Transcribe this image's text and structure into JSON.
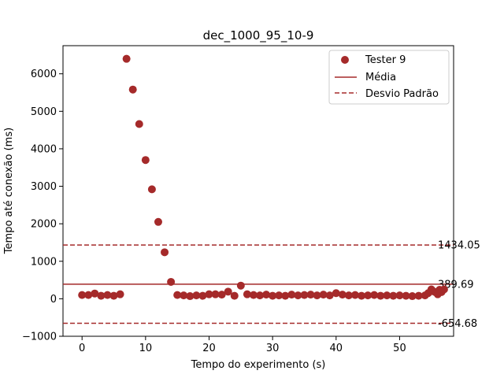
{
  "chart_data": {
    "type": "scatter",
    "title": "dec_1000_95_10-9",
    "xlabel": "Tempo do experimento (s)",
    "ylabel": "Tempo até conexão (ms)",
    "xlim": [
      -3,
      58.5
    ],
    "ylim": [
      -1000,
      6750
    ],
    "xticks": [
      0,
      10,
      20,
      30,
      40,
      50
    ],
    "yticks": [
      -1000,
      0,
      1000,
      2000,
      3000,
      4000,
      5000,
      6000
    ],
    "grid": false,
    "legend_position": "top-right",
    "legend": [
      {
        "label": "Tester 9",
        "kind": "marker"
      },
      {
        "label": "Média",
        "kind": "solid-line"
      },
      {
        "label": "Desvio Padrão",
        "kind": "dashed-line"
      }
    ],
    "series": [
      {
        "name": "Tester 9",
        "color": "#a52a2a",
        "x": [
          0,
          1,
          2,
          3,
          4,
          5,
          6,
          7,
          8,
          9,
          10,
          11,
          12,
          13,
          14,
          15,
          16,
          17,
          18,
          19,
          20,
          21,
          22,
          23,
          24,
          25,
          26,
          27,
          28,
          29,
          30,
          31,
          32,
          33,
          34,
          35,
          36,
          37,
          38,
          39,
          40,
          41,
          42,
          43,
          44,
          45,
          46,
          47,
          48,
          49,
          50,
          51,
          52,
          53,
          54,
          54.5,
          55,
          55.3,
          55.6,
          56,
          56.3,
          56.6,
          57
        ],
        "y": [
          100,
          100,
          140,
          80,
          100,
          80,
          120,
          6400,
          5580,
          4660,
          3700,
          2920,
          2050,
          1240,
          450,
          100,
          90,
          70,
          90,
          80,
          120,
          120,
          110,
          190,
          80,
          350,
          120,
          100,
          90,
          110,
          80,
          90,
          80,
          110,
          90,
          100,
          110,
          90,
          110,
          90,
          150,
          110,
          90,
          100,
          80,
          90,
          100,
          80,
          90,
          80,
          90,
          80,
          70,
          80,
          90,
          150,
          250,
          200,
          180,
          120,
          240,
          180,
          250
        ]
      }
    ],
    "reference_lines": [
      {
        "name": "Média",
        "value": 389.69,
        "label": "389.69",
        "style": "solid"
      },
      {
        "name": "Desvio Padrão",
        "value": 1434.05,
        "label": "1434.05",
        "style": "dashed"
      },
      {
        "name": "Desvio Padrão",
        "value": -654.68,
        "label": "-654.68",
        "style": "dashed"
      }
    ]
  }
}
